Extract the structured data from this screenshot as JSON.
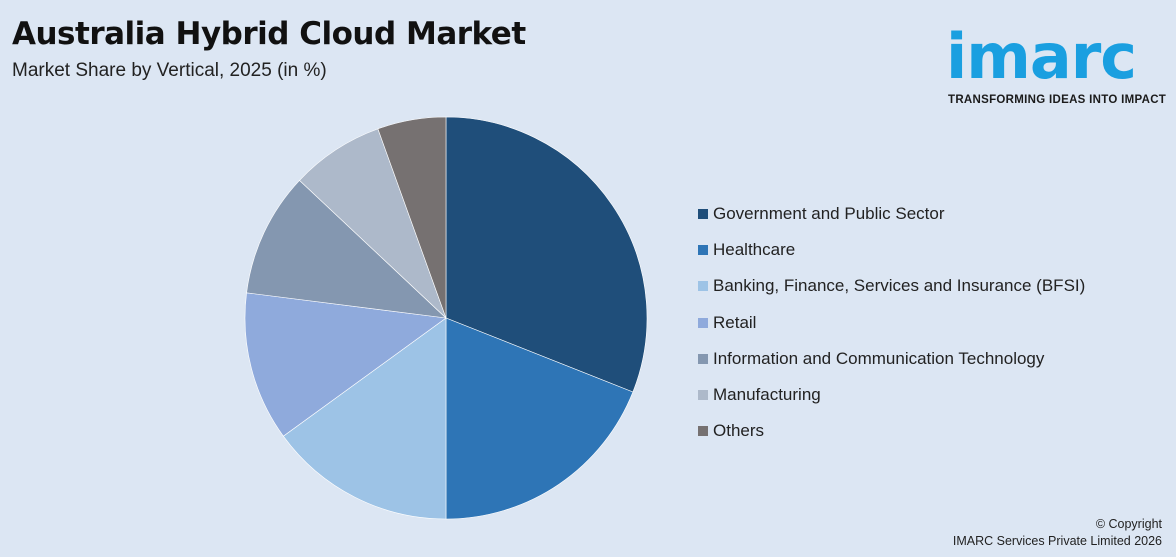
{
  "header": {
    "title": "Australia Hybrid Cloud Market",
    "subtitle": "Market Share by Vertical, 2025 (in %)"
  },
  "logo": {
    "word": "imarc",
    "tagline": "TRANSFORMING IDEAS INTO IMPACT",
    "color": "#1a9fe0"
  },
  "footer": {
    "line1": "© Copyright",
    "line2": "IMARC Services Private Limited 2026"
  },
  "chart_data": {
    "type": "pie",
    "legend_position": "right",
    "categories": [
      "Government and Public Sector",
      "Healthcare",
      "Banking, Finance, Services and Insurance (BFSI)",
      "Retail",
      "Information and Communication Technology",
      "Manufacturing",
      "Others"
    ],
    "values": [
      31,
      19,
      15,
      12,
      10,
      7.5,
      5.5
    ],
    "colors": [
      "#1f4e7a",
      "#2e75b6",
      "#9dc3e6",
      "#8faadc",
      "#8497b0",
      "#adb9ca",
      "#767171"
    ]
  }
}
